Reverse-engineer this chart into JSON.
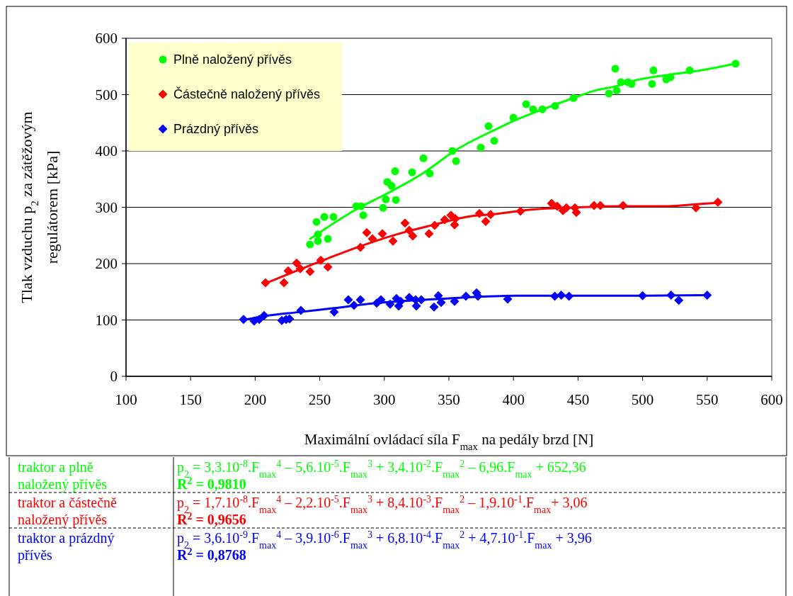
{
  "chart_data": {
    "type": "scatter",
    "xlabel": "Maximální ovládací síla F$_{max}$ na pedály brzd [N]",
    "ylabel": "Tlak vzduchu p$_{2}$ za zátěžovým regulátorem [kPa]",
    "xlim": [
      100,
      600
    ],
    "xticks": [
      100,
      150,
      200,
      250,
      300,
      350,
      400,
      450,
      500,
      550,
      600
    ],
    "ylim": [
      0,
      600
    ],
    "yticks": [
      0,
      100,
      200,
      300,
      400,
      500,
      600
    ],
    "grid": "y",
    "legend": "top left",
    "series": [
      {
        "name": "Plně naložený přívěs",
        "marker": "circle",
        "color": "#00ff00",
        "x": [
          242.4,
          247.5,
          248.6,
          248.6,
          253.5,
          256.3,
          260.6,
          278.2,
          282.0,
          283.7,
          299.0,
          301.2,
          302.3,
          305.6,
          308.3,
          308.9,
          321.5,
          330.3,
          335.2,
          352.7,
          355.5,
          374.7,
          380.7,
          385.1,
          399.9,
          409.8,
          415.2,
          422.4,
          432.2,
          446.5,
          473.9,
          479.9,
          478.8,
          483.2,
          488.7,
          491.4,
          508.4,
          507.3,
          518.3,
          521.6,
          536.4,
          572.0
        ],
        "values": [
          234,
          274,
          252,
          240,
          283,
          244,
          283,
          302,
          302,
          286,
          299,
          314,
          345,
          338,
          364,
          313,
          362,
          387,
          360,
          400,
          382,
          406,
          444,
          418,
          459,
          483,
          474,
          474,
          480,
          494,
          502,
          507,
          546,
          522,
          522,
          519,
          543,
          519,
          527,
          531,
          543,
          555
        ]
      },
      {
        "name": "Částečně naložený přívěs",
        "marker": "diamond",
        "color": "#ff0000",
        "x": [
          208.0,
          222.3,
          225.5,
          232.1,
          234.9,
          242.5,
          250.8,
          256.3,
          281.5,
          286.4,
          290.8,
          298.5,
          306.7,
          316.0,
          319.3,
          322.0,
          334.6,
          339.0,
          346.7,
          351.6,
          354.4,
          355.0,
          373.6,
          378.5,
          382.3,
          405.4,
          429.5,
          433.9,
          438.3,
          441.0,
          447.6,
          448.7,
          462.4,
          467.3,
          484.9,
          541.3,
          558.3
        ],
        "values": [
          166,
          166,
          187,
          201,
          191,
          186,
          206,
          194,
          229,
          255,
          244,
          253,
          240,
          272,
          259,
          249,
          253,
          268,
          278,
          286,
          269,
          280,
          289,
          275,
          287,
          293,
          307,
          302,
          294,
          299,
          299,
          291,
          303,
          303,
          303,
          299,
          309
        ]
      },
      {
        "name": "Prázdný přívěs",
        "marker": "diamond",
        "color": "#0000ff",
        "x": [
          191.0,
          199.2,
          203.1,
          206.9,
          220.6,
          223.9,
          226.6,
          235.4,
          261.2,
          272.1,
          276.5,
          281.5,
          294.1,
          297.4,
          304.5,
          309.4,
          311.1,
          312.7,
          319.3,
          324.2,
          324.8,
          328.6,
          338.5,
          341.8,
          344.0,
          354.4,
          363.2,
          371.4,
          372.5,
          395.5,
          432.0,
          437.0,
          443.0,
          500.0,
          522.0,
          528.0,
          550.0
        ],
        "values": [
          101,
          98,
          101,
          108,
          99,
          101,
          102,
          117,
          114,
          136,
          126,
          136,
          130,
          136,
          128,
          138,
          125,
          133,
          140,
          136,
          125,
          136,
          123,
          143,
          131,
          133,
          142,
          148,
          142,
          137,
          142,
          144,
          142,
          143,
          144,
          135,
          144
        ]
      },
      {
        "type": "line",
        "marker": "none",
        "color": "#00ff00",
        "x": [
          242.6,
          280.4,
          300,
          329.7,
          355,
          386,
          404,
          423,
          446.5,
          464.6,
          477.7,
          495.8,
          523,
          545,
          572
        ],
        "values": [
          244,
          299,
          322,
          360,
          401,
          438,
          457,
          474,
          494,
          508,
          514,
          526,
          536,
          543,
          555
        ]
      },
      {
        "type": "line",
        "marker": "none",
        "color": "#ff0000",
        "x": [
          208,
          256,
          281.5,
          319,
          338.5,
          366,
          386,
          413.6,
          441,
          477.7,
          519,
          545,
          558
        ],
        "values": [
          165,
          209,
          231,
          258,
          269,
          284,
          288,
          296,
          299,
          302,
          302,
          306,
          308
        ]
      },
      {
        "type": "line",
        "marker": "none",
        "color": "#0000ff",
        "x": [
          191,
          205,
          234,
          261,
          293,
          340.7,
          371.4,
          402.6,
          450,
          500,
          550
        ],
        "values": [
          100,
          106,
          114,
          121,
          130,
          137,
          141,
          143,
          143,
          143,
          144
        ]
      }
    ],
    "annotations": [
      "traktor a plně naložený přívěs",
      "p$_{2}$ = 3,3.10$^{-8}$.F$_{max}$$^{4}$ – 5,6.10$^{-5}$.F$_{max}$$^{3}$ + 3,4.10$^{-2}$.F$_{max}$$^{2}$ – 6,96.F$_{max}$ + 652,36",
      "R$^{2}$ = 0,9810",
      "traktor a částečně naložený přívěs",
      "p$_{2}$ = 1,7.10$^{-8}$.F$_{max}$$^{4}$ – 2,2.10$^{-5}$.F$_{max}$$^{3}$ + 8,4.10$^{-3}$.F$_{max}$$^{2}$ – 1,9.10$^{-1}$.F$_{max}$+ 3,06",
      "R$^{2}$ = 0,9656",
      "traktor a prázdný přívěs",
      "p$_{2}$ = 3,6.10$^{-9}$.F$_{max}$$^{4}$ – 3,9.10$^{-6}$.F$_{max}$$^{3}$ + 6,8.10$^{-4}$.F$_{max}$$^{2}$ + 4,7.10$^{-1}$.F$_{max}$ + 3,96",
      "R$^{2}$ = 0,8768"
    ]
  }
}
